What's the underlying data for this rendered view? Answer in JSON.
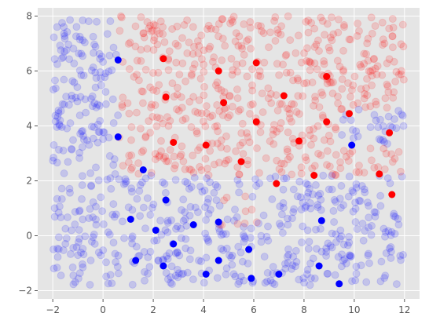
{
  "chart_data": {
    "type": "scatter",
    "title": "",
    "xlabel": "",
    "ylabel": "",
    "xlim": [
      -2.6,
      12.6
    ],
    "ylim": [
      -2.3,
      8.3
    ],
    "x_ticks": [
      -2,
      0,
      2,
      4,
      6,
      8,
      10,
      12
    ],
    "y_ticks": [
      -2,
      0,
      2,
      4,
      6,
      8
    ],
    "x_tick_labels": [
      "−2",
      "0",
      "2",
      "4",
      "6",
      "8",
      "10",
      "12"
    ],
    "y_tick_labels": [
      "−2",
      "0",
      "2",
      "4",
      "6",
      "8"
    ],
    "grid": true,
    "colors": {
      "plot_background": "#e5e5e5",
      "grid": "#ffffff",
      "class_a": "#0000ff",
      "class_b": "#ff0000"
    },
    "background_points": {
      "description_x_range": [
        -2,
        12
      ],
      "description_y_range": [
        -1.8,
        8
      ],
      "count": 1200,
      "alpha": 0.15,
      "color_rule": "red when y > 2.2 and x > 0.6, otherwise blue (approximate decision regions)"
    },
    "series": [
      {
        "color": "#0000ff",
        "x": [
          0.6,
          0.6,
          1.6,
          1.1,
          2.5,
          2.1,
          2.8,
          3.6,
          1.3,
          2.4,
          4.1,
          4.6,
          4.6,
          5.8,
          5.9,
          7.0,
          8.6,
          8.7,
          9.4,
          9.9
        ],
        "y": [
          6.4,
          3.6,
          2.4,
          0.6,
          1.3,
          0.2,
          -0.3,
          0.4,
          -0.9,
          -1.1,
          -1.4,
          0.5,
          -0.9,
          -0.5,
          -1.55,
          -1.4,
          -1.1,
          0.55,
          -1.75,
          3.3
        ]
      },
      {
        "color": "#ff0000",
        "x": [
          2.4,
          2.5,
          2.8,
          4.1,
          4.6,
          4.8,
          5.5,
          6.1,
          6.1,
          6.9,
          7.2,
          7.8,
          8.4,
          8.9,
          8.9,
          9.8,
          11.0,
          11.4,
          11.5
        ],
        "y": [
          6.45,
          5.05,
          3.4,
          3.3,
          6.0,
          4.85,
          2.7,
          6.3,
          4.15,
          1.9,
          5.1,
          3.45,
          2.2,
          5.8,
          4.15,
          4.45,
          2.25,
          3.75,
          1.5
        ]
      }
    ]
  }
}
